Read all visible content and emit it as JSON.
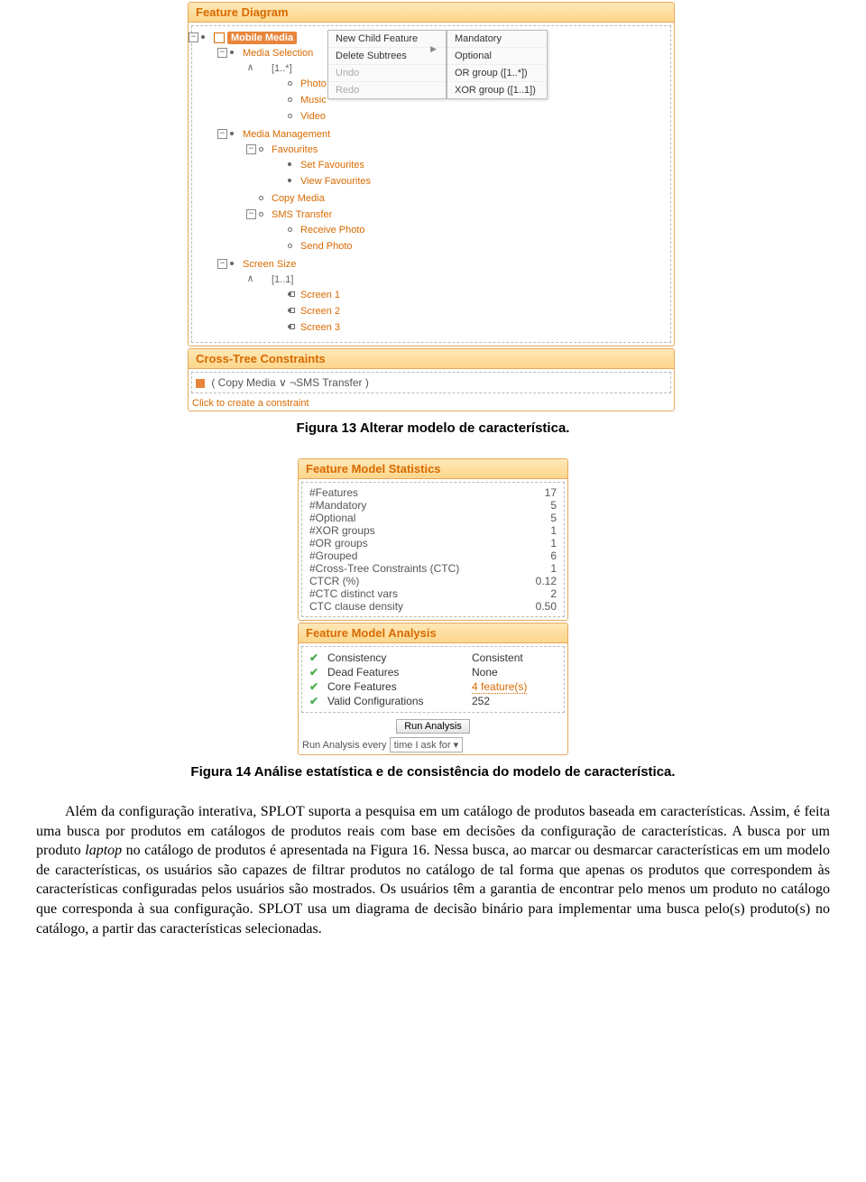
{
  "colors": {
    "accent": "#d86a00",
    "header_bg_top": "#fee8b7",
    "header_bg_bot": "#fdd68b",
    "border": "#e7a85c",
    "menu_bg": "#fafafa",
    "check": "#4caf50",
    "link": "#d86a00"
  },
  "fd": {
    "header": "Feature Diagram",
    "root": "Mobile Media",
    "tree": [
      {
        "label": "Media Selection",
        "bullet": "solid",
        "kids": [
          {
            "label": "[1..*]",
            "card": true,
            "bullet": "none",
            "kids": [
              {
                "label": "Photo",
                "bullet": "empty"
              },
              {
                "label": "Music",
                "bullet": "empty"
              },
              {
                "label": "Video",
                "bullet": "empty"
              }
            ]
          }
        ]
      },
      {
        "label": "Media Management",
        "bullet": "solid",
        "kids": [
          {
            "label": "Favourites",
            "bullet": "empty",
            "kids": [
              {
                "label": "Set Favourites",
                "bullet": "solid"
              },
              {
                "label": "View Favourites",
                "bullet": "solid"
              }
            ]
          },
          {
            "label": "Copy Media",
            "bullet": "empty"
          },
          {
            "label": "SMS Transfer",
            "bullet": "empty",
            "kids": [
              {
                "label": "Receive Photo",
                "bullet": "empty"
              },
              {
                "label": "Send Photo",
                "bullet": "empty"
              }
            ]
          }
        ]
      },
      {
        "label": "Screen Size",
        "bullet": "solid",
        "kids": [
          {
            "label": "[1..1]",
            "card": true,
            "bullet": "none",
            "kids": [
              {
                "label": "Screen 1",
                "bullet": "sq"
              },
              {
                "label": "Screen 2",
                "bullet": "sq"
              },
              {
                "label": "Screen 3",
                "bullet": "sq"
              }
            ]
          }
        ]
      }
    ],
    "menu1": [
      {
        "label": "New Child Feature",
        "sub": true,
        "enabled": true
      },
      {
        "label": "Delete Subtrees",
        "enabled": true
      },
      {
        "label": "Undo",
        "enabled": false
      },
      {
        "label": "Redo",
        "enabled": false
      }
    ],
    "menu2": [
      "Mandatory",
      "Optional",
      "OR group ([1..*])",
      "XOR group ([1..1])"
    ]
  },
  "ctc": {
    "header": "Cross-Tree Constraints",
    "expr": "( Copy Media ∨ ¬SMS Transfer )",
    "create": "Click to create a constraint"
  },
  "cap1": "Figura 13 Alterar modelo de característica.",
  "stats": {
    "header": "Feature Model Statistics",
    "rows": [
      [
        "#Features",
        "17"
      ],
      [
        "#Mandatory",
        "5"
      ],
      [
        "#Optional",
        "5"
      ],
      [
        "#XOR groups",
        "1"
      ],
      [
        "#OR groups",
        "1"
      ],
      [
        "#Grouped",
        "6"
      ],
      [
        "#Cross-Tree Constraints (CTC)",
        "1"
      ],
      [
        "CTCR (%)",
        "0.12"
      ],
      [
        "#CTC distinct vars",
        "2"
      ],
      [
        "CTC clause density",
        "0.50"
      ]
    ]
  },
  "ana": {
    "header": "Feature Model Analysis",
    "rows": [
      {
        "name": "Consistency",
        "val": "Consistent",
        "link": false
      },
      {
        "name": "Dead Features",
        "val": "None",
        "link": false
      },
      {
        "name": "Core Features",
        "val": "4 feature(s)",
        "link": true
      },
      {
        "name": "Valid Configurations",
        "val": "252",
        "link": false
      }
    ],
    "run_btn": "Run Analysis",
    "run_lbl": "Run Analysis every",
    "run_sel": "time I ask for"
  },
  "cap2": "Figura 14 Análise estatística e de consistência do modelo de característica.",
  "para": "Além da configuração interativa, SPLOT suporta a pesquisa em um catálogo de produtos baseada em características. Assim, é feita uma busca por produtos em catálogos de produtos reais com base em decisões da configuração de características. A busca por um produto <i>laptop</i> no catálogo de produtos é apresentada na Figura 16. Nessa busca, ao marcar ou desmarcar características em um modelo de características, os usuários são capazes de filtrar produtos no catálogo de tal forma que apenas os produtos que correspondem às características configuradas pelos usuários são mostrados. Os usuários têm a garantia de encontrar pelo menos um produto no catálogo que corresponda à sua configuração. SPLOT usa um diagrama de decisão binário para implementar uma busca pelo(s) produto(s) no catálogo, a partir das características selecionadas."
}
